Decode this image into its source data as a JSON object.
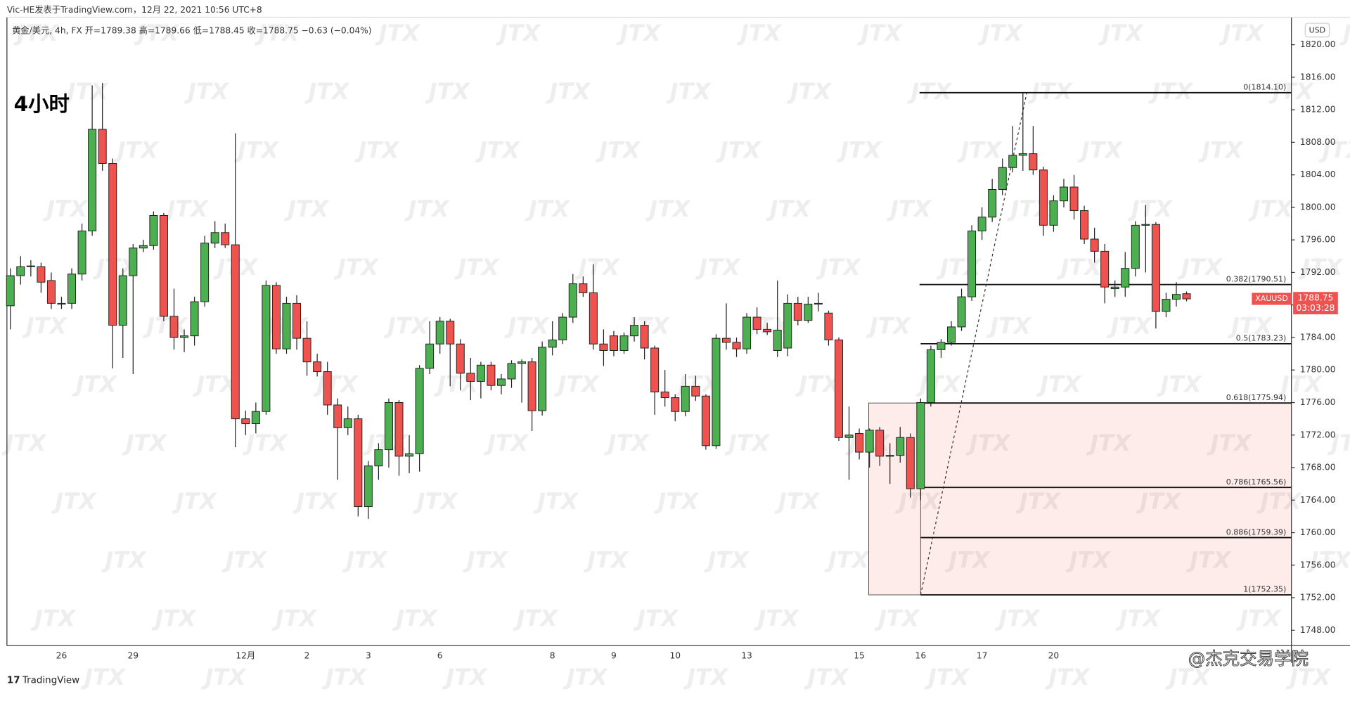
{
  "chart_data": {
    "type": "candlestick",
    "byline": "Vic-HE发表于TradingView.com，12月 22, 2021 10:56 UTC+8",
    "legend": "黄金/美元, 4h, FX  开=1789.38  高=1789.66  低=1788.45  收=1788.75  −0.63 (−0.04%)",
    "title": "4小时",
    "currency": "USD",
    "symbol": "XAUUSD",
    "countdown": "03:03:28",
    "brand": "TradingView",
    "credit": "@杰克交易学院",
    "watermark": "JTX",
    "up_color": "#4caf50",
    "down_color": "#ef5350",
    "categories": [
      null,
      null,
      null,
      null,
      null,
      "26",
      null,
      null,
      null,
      null,
      null,
      null,
      "29",
      null,
      null,
      null,
      null,
      null,
      null,
      null,
      null,
      null,
      null,
      "12月",
      null,
      null,
      null,
      null,
      null,
      "2",
      null,
      null,
      null,
      null,
      null,
      "3",
      null,
      null,
      null,
      null,
      null,
      null,
      "6",
      null,
      null,
      null,
      null,
      null,
      null,
      null,
      null,
      null,
      null,
      "8",
      null,
      null,
      null,
      null,
      null,
      "9",
      null,
      null,
      null,
      null,
      null,
      "10",
      null,
      null,
      null,
      null,
      null,
      null,
      "13",
      null,
      null,
      null,
      null,
      null,
      null,
      null,
      null,
      null,
      null,
      "15",
      null,
      null,
      null,
      null,
      null,
      "16",
      null,
      null,
      null,
      null,
      null,
      "17",
      null,
      null,
      null,
      null,
      null,
      null,
      "20",
      null,
      null,
      null,
      null,
      null,
      null,
      null,
      null,
      null,
      null,
      null,
      null,
      null
    ],
    "open": [
      1787.9,
      1791.6,
      1792.7,
      1792.7,
      1791,
      1788.1,
      1788.2,
      1791.8,
      1797.1,
      1809.6,
      1805.4,
      1785.5,
      1791.6,
      1795,
      1795.3,
      1799,
      1786.6,
      1784,
      1784.2,
      1788.4,
      1795.6,
      1796.9,
      1795.4,
      1774,
      1773.4,
      1774.9,
      1790.4,
      1782.6,
      1788.2,
      1783.9,
      1781,
      1779.8,
      1775.7,
      1772.9,
      1774,
      1763.2,
      1768.2,
      1770.2,
      1776,
      1769.4,
      1769.7,
      1780.2,
      1783.2,
      1786,
      1783.2,
      1779.6,
      1778.6,
      1780.6,
      1778.1,
      1778.9,
      1780.8,
      1781,
      1775,
      1782.8,
      1783.7,
      1786.5,
      1790.6,
      1789.5,
      1783.2,
      1784.2,
      1782.4,
      1784.2,
      1785.5,
      1782.7,
      1777.3,
      1776.6,
      1774.9,
      1778,
      1776.8,
      1770.7,
      1783.9,
      1783.4,
      1782.6,
      1786.5,
      1785,
      1782.4,
      1782.7,
      1788.2,
      1786.1,
      1788.1,
      1787,
      1783.7,
      1771.7,
      1772.2,
      1769.9,
      1772.6,
      1769.4,
      1769.5,
      1771.7,
      1765.4,
      1776,
      1782.5,
      1783.4,
      1785.3,
      1789,
      1797.1,
      1798.8,
      1802.2,
      1804.9,
      1806.4,
      1806.6,
      1804.6,
      1797.8,
      1800.8,
      1802.5,
      1799.6,
      1796.1,
      1794.6,
      1790,
      1790.2,
      1792.5,
      1797.8,
      1797.9,
      1787.2,
      1788.7,
      1789.38
    ],
    "high": [
      1792.5,
      1794,
      1793.5,
      1793.2,
      1792,
      1789,
      1792.5,
      1798,
      1815,
      1815.3,
      1806,
      1792.5,
      1795.5,
      1796,
      1799.5,
      1799.3,
      1790,
      1785,
      1789,
      1796.5,
      1798.3,
      1798,
      1809.1,
      1775,
      1776,
      1791,
      1790.8,
      1789,
      1789.2,
      1786,
      1782,
      1781,
      1776.5,
      1775.5,
      1774.5,
      1768.8,
      1771,
      1776.5,
      1776.3,
      1772,
      1780.6,
      1786,
      1786.5,
      1786.3,
      1783.8,
      1781.5,
      1781,
      1781,
      1779.5,
      1781.2,
      1781.3,
      1781.5,
      1783.5,
      1786,
      1787,
      1791.8,
      1791.5,
      1793,
      1785,
      1784.8,
      1784.6,
      1786.5,
      1786,
      1783,
      1780,
      1777,
      1779.5,
      1779.3,
      1777,
      1784.4,
      1788.2,
      1784,
      1787,
      1787.7,
      1785.8,
      1791,
      1789.3,
      1789,
      1789,
      1789.5,
      1787.3,
      1784,
      1775.5,
      1772.8,
      1772.8,
      1773,
      1771,
      1773,
      1772.2,
      1776.5,
      1783,
      1783.8,
      1786,
      1790,
      1797.8,
      1800,
      1803.5,
      1806,
      1810,
      1814.1,
      1810,
      1805,
      1801.5,
      1803.5,
      1804,
      1800.2,
      1797.5,
      1795.5,
      1791,
      1794.5,
      1798.3,
      1800.3,
      1798.2,
      1789.5,
      1790.8,
      1789.66
    ],
    "low": [
      1785,
      1790.5,
      1791.5,
      1789.5,
      1787.5,
      1787.5,
      1787.5,
      1791,
      1796.5,
      1804.5,
      1780.2,
      1781.5,
      1779.5,
      1794.5,
      1794.8,
      1786,
      1782.5,
      1782.2,
      1783,
      1787.8,
      1795,
      1795,
      1770.5,
      1772,
      1772.2,
      1774.5,
      1782,
      1782,
      1782.5,
      1779.3,
      1779.2,
      1774.5,
      1766.5,
      1772,
      1762,
      1761.7,
      1766.5,
      1768,
      1767,
      1767.3,
      1767.5,
      1779.5,
      1782,
      1778,
      1777.5,
      1776.3,
      1776.5,
      1777.5,
      1777,
      1777.8,
      1776,
      1772.5,
      1774.4,
      1781.8,
      1783.2,
      1785.8,
      1789,
      1782.5,
      1780.5,
      1781.7,
      1782,
      1783.5,
      1781.3,
      1774.5,
      1775.5,
      1773.7,
      1774.3,
      1776.2,
      1770.2,
      1770.3,
      1782.5,
      1781.6,
      1782,
      1784.4,
      1784.3,
      1781.6,
      1781.7,
      1785.5,
      1785.8,
      1787.2,
      1783,
      1771.3,
      1766.5,
      1769,
      1768,
      1768.2,
      1766,
      1768.6,
      1764.3,
      1764,
      1775.5,
      1781.5,
      1783,
      1784.8,
      1788.5,
      1796,
      1798.2,
      1801.5,
      1804.3,
      1804.5,
      1804,
      1796.5,
      1797,
      1800,
      1798.5,
      1795.5,
      1793.2,
      1788.2,
      1789,
      1789,
      1791.5,
      1792,
      1785.1,
      1786.5,
      1787.8,
      1788.45
    ],
    "close": [
      1791.6,
      1792.7,
      1792.8,
      1790.8,
      1788.2,
      1788.2,
      1791.8,
      1797.1,
      1809.6,
      1805.4,
      1785.5,
      1791.6,
      1795,
      1795.3,
      1799,
      1786.6,
      1784,
      1784.2,
      1788.4,
      1795.6,
      1796.9,
      1795.4,
      1774,
      1773.4,
      1774.9,
      1790.4,
      1782.6,
      1788.2,
      1783.9,
      1781,
      1779.8,
      1775.7,
      1772.9,
      1774,
      1763.2,
      1768.2,
      1770.2,
      1776,
      1769.4,
      1769.7,
      1780.2,
      1783.2,
      1786,
      1783.2,
      1779.6,
      1778.6,
      1780.6,
      1778.1,
      1778.9,
      1780.8,
      1781,
      1775,
      1782.8,
      1783.7,
      1786.5,
      1790.6,
      1789.5,
      1783.2,
      1782.4,
      1782.4,
      1784.2,
      1785.5,
      1782.7,
      1777.3,
      1776.6,
      1774.9,
      1778,
      1776.8,
      1770.7,
      1783.9,
      1783.4,
      1782.6,
      1786.5,
      1785,
      1784.7,
      1784.9,
      1788.2,
      1786.1,
      1788.1,
      1788.2,
      1783.7,
      1771.7,
      1772,
      1769.9,
      1772.6,
      1769.4,
      1769.5,
      1771.7,
      1765.4,
      1776,
      1782.5,
      1783.4,
      1785.3,
      1789,
      1797.1,
      1798.8,
      1802.2,
      1804.9,
      1806.4,
      1806.6,
      1804.6,
      1797.8,
      1800.8,
      1802.5,
      1799.6,
      1796.1,
      1794.6,
      1790.2,
      1790.2,
      1792.5,
      1797.8,
      1797.9,
      1787.2,
      1788.7,
      1789.3,
      1788.75
    ],
    "ylim": [
      1746.1,
      1825.5
    ],
    "yticks": [
      {
        "value": 1748,
        "label": "1748.00"
      },
      {
        "value": 1752,
        "label": "1752.00"
      },
      {
        "value": 1756,
        "label": "1756.00"
      },
      {
        "value": 1760,
        "label": "1760.00"
      },
      {
        "value": 1764,
        "label": "1764.00"
      },
      {
        "value": 1768,
        "label": "1768.00"
      },
      {
        "value": 1772,
        "label": "1772.00"
      },
      {
        "value": 1776,
        "label": "1776.00"
      },
      {
        "value": 1780,
        "label": "1780.00"
      },
      {
        "value": 1784,
        "label": "1784.00"
      },
      {
        "value": 1788,
        "label": "1788.00"
      },
      {
        "value": 1792,
        "label": "1792.00"
      },
      {
        "value": 1796,
        "label": "1796.00"
      },
      {
        "value": 1800,
        "label": "1800.00"
      },
      {
        "value": 1804,
        "label": "1804.00"
      },
      {
        "value": 1808,
        "label": "1808.00"
      },
      {
        "value": 1812,
        "label": "1812.00"
      },
      {
        "value": 1816,
        "label": "1816.00"
      },
      {
        "value": 1820,
        "label": "1820.00"
      }
    ],
    "fib_levels": [
      {
        "value": 1814.1,
        "label": "0(1814.10)"
      },
      {
        "value": 1790.51,
        "label": "0.382(1790.51)"
      },
      {
        "value": 1783.23,
        "label": "0.5(1783.23)"
      },
      {
        "value": 1775.94,
        "label": "0.618(1775.94)"
      },
      {
        "value": 1765.56,
        "label": "0.786(1765.56)"
      },
      {
        "value": 1759.39,
        "label": "0.886(1759.39)"
      },
      {
        "value": 1752.35,
        "label": "1(1752.35)"
      }
    ]
  }
}
